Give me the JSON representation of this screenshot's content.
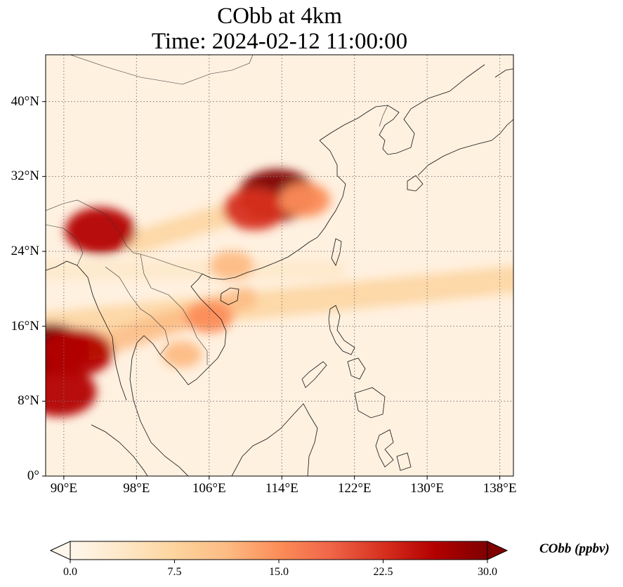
{
  "title": {
    "line1": "CObb at 4km",
    "line2": "Time: 2024-02-12 11:00:00"
  },
  "map": {
    "projection": "PlateCarree",
    "lon_range": [
      88,
      139.5
    ],
    "lat_range": [
      0,
      45
    ],
    "gridlines": "dotted",
    "lat_ticks": [
      "40°N",
      "32°N",
      "24°N",
      "16°N",
      "8°N",
      "0°"
    ],
    "lon_ticks": [
      "90°E",
      "98°E",
      "106°E",
      "114°E",
      "122°E",
      "130°E",
      "138°E"
    ],
    "field": "CObb",
    "hotspots": [
      {
        "lon": 113.5,
        "lat": 30.0,
        "value": 30
      },
      {
        "lon": 111.0,
        "lat": 28.5,
        "value": 22
      },
      {
        "lon": 116.5,
        "lat": 29.5,
        "value": 16
      },
      {
        "lon": 88.5,
        "lat": 13.5,
        "value": 30
      },
      {
        "lon": 91.5,
        "lat": 13.2,
        "value": 26
      },
      {
        "lon": 89.5,
        "lat": 9.0,
        "value": 28
      },
      {
        "lon": 94.0,
        "lat": 26.2,
        "value": 26
      },
      {
        "lon": 106.0,
        "lat": 17.0,
        "value": 14
      },
      {
        "lon": 108.5,
        "lat": 22.5,
        "value": 12
      },
      {
        "lon": 103.0,
        "lat": 13.0,
        "value": 10
      }
    ],
    "plumes": [
      {
        "from": [
          88,
          16
        ],
        "to": [
          139.5,
          21
        ],
        "width": 3.0,
        "value": 6
      },
      {
        "from": [
          88,
          22
        ],
        "to": [
          120,
          22
        ],
        "width": 2.0,
        "value": 4
      },
      {
        "from": [
          98,
          25
        ],
        "to": [
          115,
          30
        ],
        "width": 2.5,
        "value": 8
      },
      {
        "from": [
          88,
          12
        ],
        "to": [
          110,
          19
        ],
        "width": 2.5,
        "value": 10
      }
    ]
  },
  "colorbar": {
    "label": "CObb (ppbv)",
    "ticks": [
      "0.0",
      "7.5",
      "15.0",
      "22.5",
      "30.0"
    ],
    "min": 0,
    "max": 30,
    "cmap": "OrRd",
    "colors": [
      "#fff7ec",
      "#fee8c8",
      "#fdd49e",
      "#fdbb84",
      "#fc8d59",
      "#ef6548",
      "#d7301f",
      "#b30000",
      "#7f0000"
    ]
  }
}
